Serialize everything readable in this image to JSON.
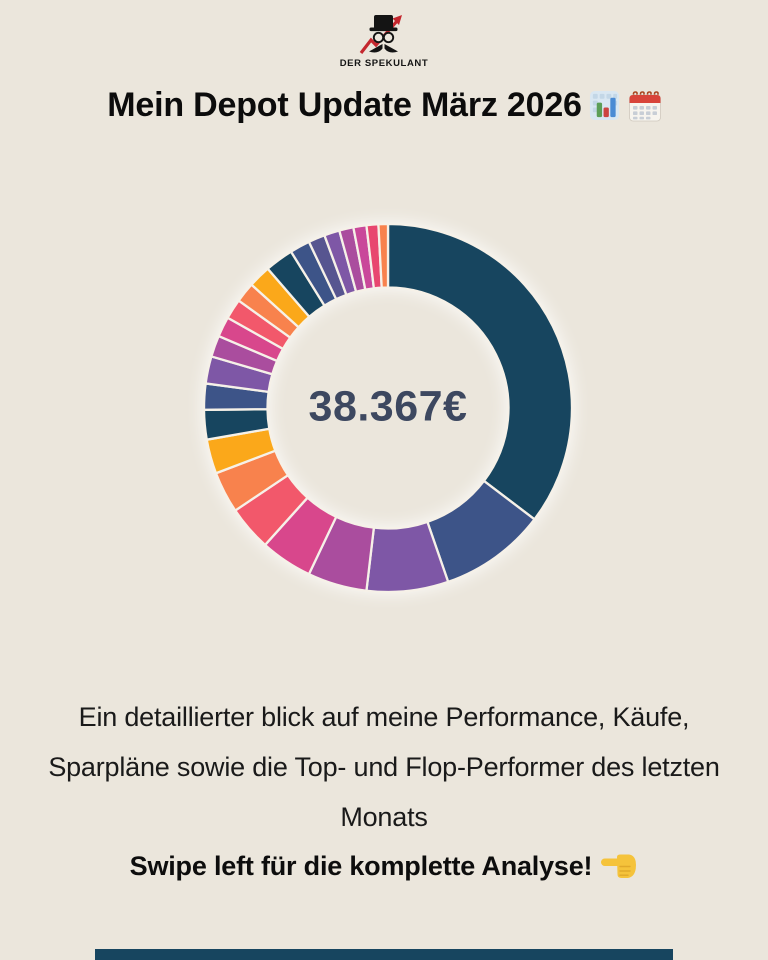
{
  "page": {
    "background_color": "#EBE6DC",
    "bottom_bar_color": "#17455F"
  },
  "logo": {
    "brand": "DER SPEKULANT",
    "icon": "top-hat-glasses-mustache-arrow-icon",
    "ink_color": "#141414",
    "arrow_color": "#C4272E"
  },
  "header": {
    "title": "Mein Depot Update März 2026",
    "emojis": [
      "bar-chart-emoji",
      "spiral-calendar-emoji"
    ]
  },
  "chart_data": {
    "type": "pie",
    "subtype": "donut",
    "center_label": "38.367€",
    "center_label_color": "#3D4860",
    "start_angle_deg": 0,
    "direction": "clockwise",
    "separator_color": "#F6F1E8",
    "legend": "none",
    "segments": [
      {
        "value": 34.0,
        "color": "#17455F"
      },
      {
        "value": 9.0,
        "color": "#3D5488"
      },
      {
        "value": 6.9,
        "color": "#7E57A6"
      },
      {
        "value": 5.0,
        "color": "#AA4D9E"
      },
      {
        "value": 4.4,
        "color": "#D8478C"
      },
      {
        "value": 3.8,
        "color": "#F2586B"
      },
      {
        "value": 3.5,
        "color": "#F8824D"
      },
      {
        "value": 2.9,
        "color": "#FBA81A"
      },
      {
        "value": 2.5,
        "color": "#17455F"
      },
      {
        "value": 2.2,
        "color": "#3D5488"
      },
      {
        "value": 2.3,
        "color": "#7E57A6"
      },
      {
        "value": 1.8,
        "color": "#AA4D9E"
      },
      {
        "value": 1.7,
        "color": "#D8478C"
      },
      {
        "value": 1.7,
        "color": "#F2586B"
      },
      {
        "value": 1.7,
        "color": "#F8824D"
      },
      {
        "value": 1.9,
        "color": "#FBA81A"
      },
      {
        "value": 2.4,
        "color": "#17455F"
      },
      {
        "value": 1.7,
        "color": "#3D5488"
      },
      {
        "value": 1.4,
        "color": "#575590"
      },
      {
        "value": 1.3,
        "color": "#7E57A6"
      },
      {
        "value": 1.2,
        "color": "#AA4D9E"
      },
      {
        "value": 1.1,
        "color": "#C9489A"
      },
      {
        "value": 1.0,
        "color": "#E8476F"
      },
      {
        "value": 0.8,
        "color": "#F8824D"
      }
    ]
  },
  "description": {
    "lines": [
      "Ein detaillierter blick auf meine Performance, Käufe,",
      "Sparpläne sowie die Top- und Flop-Performer des letzten",
      "Monats"
    ]
  },
  "cta": {
    "text": "Swipe left für die komplette Analyse!",
    "emoji": "backhand-index-pointing-left-emoji",
    "emoji_color": "#F5C33B"
  }
}
